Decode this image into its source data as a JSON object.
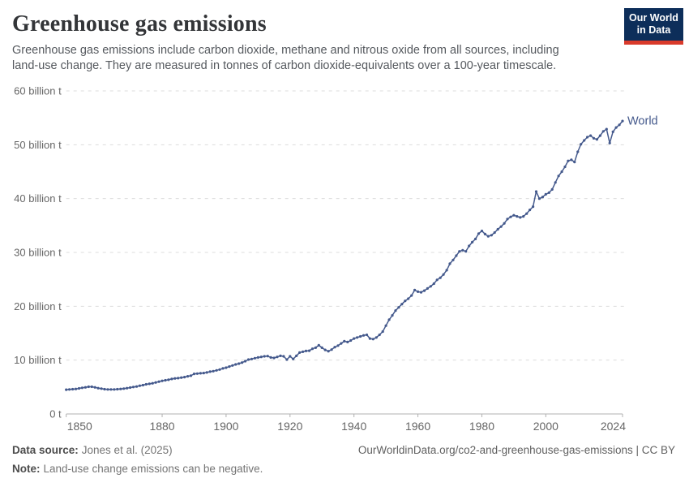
{
  "header": {
    "title": "Greenhouse gas emissions",
    "subtitle": "Greenhouse gas emissions include carbon dioxide, methane and nitrous oxide from all sources, including land-use change. They are measured in tonnes of carbon dioxide-equivalents over a 100-year timescale."
  },
  "logo": {
    "line1": "Our World",
    "line2": "in Data",
    "bg_color": "#0d2e5a",
    "bar_color": "#d93a2b"
  },
  "footer": {
    "source_label": "Data source:",
    "source_value": "Jones et al. (2025)",
    "note_label": "Note:",
    "note_value": "Land-use change emissions can be negative.",
    "attribution": "OurWorldinData.org/co2-and-greenhouse-gas-emissions | CC BY"
  },
  "chart_data": {
    "type": "line",
    "title": "Greenhouse gas emissions",
    "xlabel": "",
    "ylabel": "",
    "unit": "billion t",
    "xlim": [
      1850,
      2024
    ],
    "ylim": [
      0,
      60
    ],
    "grid": "horizontal-dashed",
    "legend": "inline-end-label",
    "xticks": [
      1850,
      1880,
      1900,
      1920,
      1940,
      1960,
      1980,
      2000,
      2024
    ],
    "yticks": [
      {
        "value": 0,
        "label": "0 t"
      },
      {
        "value": 10,
        "label": "10 billion t"
      },
      {
        "value": 20,
        "label": "20 billion t"
      },
      {
        "value": 30,
        "label": "30 billion t"
      },
      {
        "value": 40,
        "label": "40 billion t"
      },
      {
        "value": 50,
        "label": "50 billion t"
      },
      {
        "value": 60,
        "label": "60 billion t"
      }
    ],
    "colors": {
      "grid": "#dcdcdc",
      "axis": "#b0b0b0",
      "tick_text": "#666666",
      "series_world": "#44598c"
    },
    "year_start": 1850,
    "year_end": 2024,
    "series": [
      {
        "name": "World",
        "color": "#44598c",
        "values": [
          4.5,
          4.55,
          4.6,
          4.65,
          4.75,
          4.85,
          4.95,
          5.05,
          5.05,
          4.95,
          4.8,
          4.7,
          4.6,
          4.55,
          4.55,
          4.55,
          4.6,
          4.65,
          4.7,
          4.8,
          4.9,
          5.0,
          5.1,
          5.25,
          5.35,
          5.5,
          5.6,
          5.7,
          5.85,
          6.0,
          6.15,
          6.25,
          6.35,
          6.5,
          6.6,
          6.65,
          6.75,
          6.85,
          7.0,
          7.1,
          7.45,
          7.5,
          7.55,
          7.6,
          7.7,
          7.85,
          7.95,
          8.1,
          8.25,
          8.45,
          8.6,
          8.8,
          9.0,
          9.2,
          9.35,
          9.55,
          9.8,
          10.1,
          10.2,
          10.35,
          10.5,
          10.6,
          10.7,
          10.75,
          10.5,
          10.4,
          10.6,
          10.8,
          10.7,
          10.1,
          10.7,
          10.2,
          10.8,
          11.4,
          11.55,
          11.7,
          11.75,
          12.1,
          12.3,
          12.75,
          12.3,
          11.9,
          11.65,
          11.95,
          12.4,
          12.7,
          13.1,
          13.5,
          13.35,
          13.65,
          14.0,
          14.2,
          14.4,
          14.6,
          14.7,
          14.0,
          13.9,
          14.2,
          14.7,
          15.3,
          16.4,
          17.5,
          18.3,
          19.2,
          19.8,
          20.4,
          21.0,
          21.4,
          22.0,
          23.0,
          22.7,
          22.6,
          22.9,
          23.3,
          23.7,
          24.2,
          24.9,
          25.3,
          25.9,
          26.7,
          27.9,
          28.6,
          29.4,
          30.2,
          30.4,
          30.2,
          31.2,
          31.9,
          32.5,
          33.5,
          34.0,
          33.4,
          33.0,
          33.2,
          33.7,
          34.3,
          34.8,
          35.4,
          36.2,
          36.6,
          36.9,
          36.7,
          36.5,
          36.7,
          37.2,
          37.9,
          38.5,
          41.3,
          40.0,
          40.3,
          40.8,
          41.1,
          41.7,
          43.0,
          44.2,
          45.0,
          45.9,
          47.0,
          47.2,
          46.8,
          48.7,
          50.1,
          50.8,
          51.4,
          51.7,
          51.2,
          51.0,
          51.7,
          52.5,
          52.9,
          50.3,
          52.4,
          53.2,
          53.7,
          54.4
        ]
      }
    ]
  }
}
